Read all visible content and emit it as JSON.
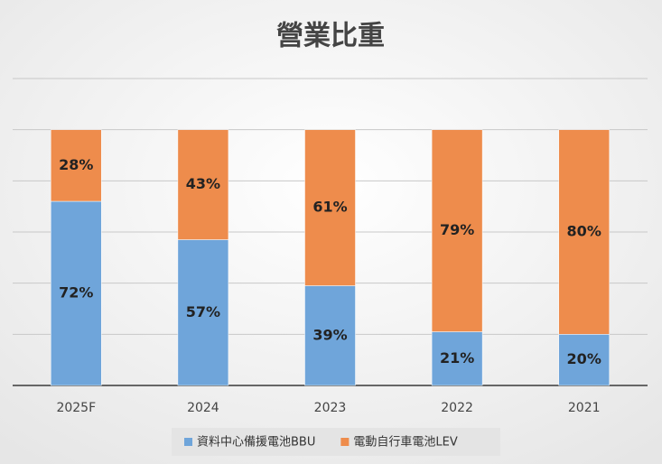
{
  "chart_data": {
    "type": "stacked_bar",
    "title": "營業比重",
    "categories": [
      "2025F",
      "2024",
      "2023",
      "2022",
      "2021"
    ],
    "series": [
      {
        "name": "資料中心備援電池BBU",
        "color": "#6fa5da",
        "values": [
          72,
          57,
          39,
          21,
          20
        ],
        "value_labels": [
          "72%",
          "57%",
          "39%",
          "21%",
          "20%"
        ]
      },
      {
        "name": "電動自行車電池LEV",
        "color": "#ee8c4c",
        "values": [
          28,
          43,
          61,
          79,
          80
        ],
        "value_labels": [
          "28%",
          "43%",
          "61%",
          "79%",
          "80%"
        ]
      }
    ],
    "ylim": [
      0,
      120
    ],
    "yticks": [
      0,
      20,
      40,
      60,
      80,
      100,
      120
    ],
    "grid": true
  }
}
